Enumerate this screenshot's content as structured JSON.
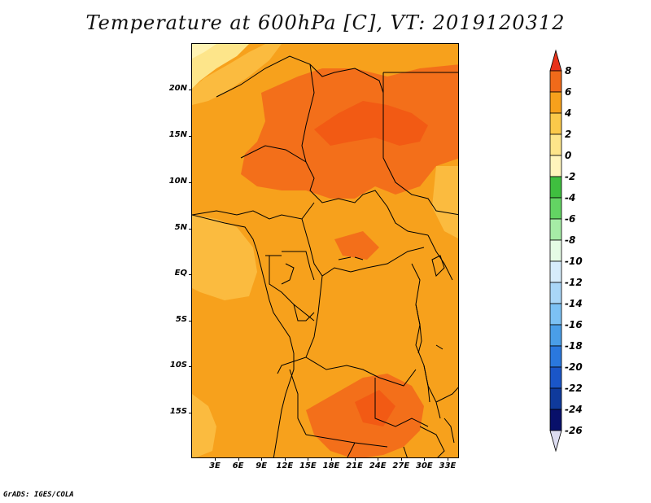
{
  "title": "Temperature at 600hPa [C], VT: 2019120312",
  "footer": "GrADS: IGES/COLA",
  "lat_labels": [
    "20N",
    "15N",
    "10N",
    "5N",
    "EQ",
    "5S",
    "10S",
    "15S"
  ],
  "lon_labels": [
    "3E",
    "6E",
    "9E",
    "12E",
    "15E",
    "18E",
    "21E",
    "24E",
    "27E",
    "30E",
    "33E"
  ],
  "colorbar": {
    "labels": [
      "8",
      "6",
      "4",
      "2",
      "0",
      "-2",
      "-4",
      "-6",
      "-8",
      "-10",
      "-12",
      "-14",
      "-16",
      "-18",
      "-20",
      "-22",
      "-24",
      "-26"
    ],
    "colors": [
      "#ff5a1e",
      "#f06a1a",
      "#f7a11c",
      "#fbc94a",
      "#fde58a",
      "#fff5bc",
      "#3fbf3f",
      "#63d463",
      "#a6eca6",
      "#e5fbe5",
      "#d6ecfb",
      "#a9d6f7",
      "#7cc1f4",
      "#4a9ee8",
      "#2a78de",
      "#1a56c8",
      "#0f3a9c",
      "#08106a"
    ],
    "top_arrow_color": "#e8321a",
    "bottom_arrow_color": "#dcdcf0"
  },
  "map_colors": {
    "land_orange": "#f7a11c",
    "warm": "#f36f1a",
    "hot": "#f25a14",
    "cool": "#fbbb3f",
    "pale": "#fde58a",
    "pale2": "#fff3b3"
  }
}
